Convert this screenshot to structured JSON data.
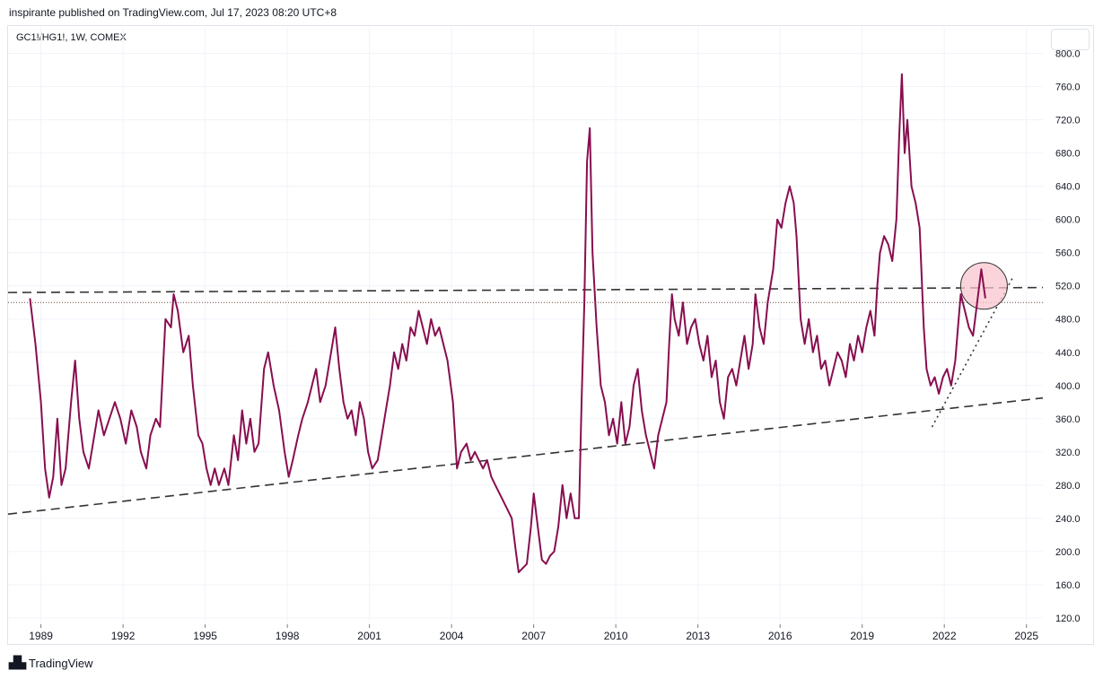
{
  "header": {
    "published": "inspirante published on TradingView.com, Jul 17, 2023 08:20 UTC+8"
  },
  "symbol_label": "GC1!/HG1!, 1W, COMEX",
  "footer": {
    "brand": "TradingView"
  },
  "colors": {
    "series": "#880e4f",
    "grid": "#f0f3fa",
    "trend": "#333333",
    "highlight_fill": "#f9c6cf",
    "highlight_stroke": "#333333"
  },
  "chart_data": {
    "type": "line",
    "x_range": [
      1987.8,
      2025.6
    ],
    "ylim": [
      108,
      832
    ],
    "x_ticks": [
      "1989",
      "1992",
      "1995",
      "1998",
      "2001",
      "2004",
      "2007",
      "2010",
      "2013",
      "2016",
      "2019",
      "2022",
      "2025"
    ],
    "y_ticks": [
      800,
      760,
      720,
      680,
      640,
      600,
      560,
      520,
      480,
      440,
      400,
      360,
      320,
      280,
      240,
      200,
      160,
      120
    ],
    "series": [
      {
        "points": [
          [
            1988.6,
            505
          ],
          [
            1988.8,
            450
          ],
          [
            1989.0,
            380
          ],
          [
            1989.15,
            300
          ],
          [
            1989.3,
            265
          ],
          [
            1989.45,
            290
          ],
          [
            1989.6,
            360
          ],
          [
            1989.75,
            280
          ],
          [
            1989.9,
            300
          ],
          [
            1990.1,
            380
          ],
          [
            1990.25,
            430
          ],
          [
            1990.4,
            360
          ],
          [
            1990.55,
            320
          ],
          [
            1990.75,
            300
          ],
          [
            1990.9,
            330
          ],
          [
            1991.1,
            370
          ],
          [
            1991.3,
            340
          ],
          [
            1991.5,
            360
          ],
          [
            1991.7,
            380
          ],
          [
            1991.9,
            360
          ],
          [
            1992.1,
            330
          ],
          [
            1992.3,
            370
          ],
          [
            1992.5,
            350
          ],
          [
            1992.65,
            320
          ],
          [
            1992.85,
            300
          ],
          [
            1993.0,
            340
          ],
          [
            1993.2,
            360
          ],
          [
            1993.35,
            350
          ],
          [
            1993.55,
            480
          ],
          [
            1993.75,
            470
          ],
          [
            1993.85,
            510
          ],
          [
            1994.0,
            490
          ],
          [
            1994.2,
            440
          ],
          [
            1994.4,
            460
          ],
          [
            1994.55,
            400
          ],
          [
            1994.75,
            340
          ],
          [
            1994.9,
            330
          ],
          [
            1995.05,
            300
          ],
          [
            1995.2,
            280
          ],
          [
            1995.35,
            300
          ],
          [
            1995.5,
            280
          ],
          [
            1995.7,
            300
          ],
          [
            1995.85,
            280
          ],
          [
            1996.05,
            340
          ],
          [
            1996.2,
            310
          ],
          [
            1996.35,
            370
          ],
          [
            1996.5,
            330
          ],
          [
            1996.65,
            360
          ],
          [
            1996.8,
            320
          ],
          [
            1996.95,
            330
          ],
          [
            1997.15,
            420
          ],
          [
            1997.3,
            440
          ],
          [
            1997.5,
            400
          ],
          [
            1997.7,
            370
          ],
          [
            1997.9,
            320
          ],
          [
            1998.05,
            290
          ],
          [
            1998.2,
            310
          ],
          [
            1998.4,
            340
          ],
          [
            1998.55,
            360
          ],
          [
            1998.75,
            380
          ],
          [
            1998.9,
            400
          ],
          [
            1999.05,
            420
          ],
          [
            1999.2,
            380
          ],
          [
            1999.4,
            400
          ],
          [
            1999.55,
            430
          ],
          [
            1999.75,
            470
          ],
          [
            1999.9,
            420
          ],
          [
            2000.05,
            380
          ],
          [
            2000.2,
            360
          ],
          [
            2000.35,
            370
          ],
          [
            2000.5,
            340
          ],
          [
            2000.65,
            380
          ],
          [
            2000.8,
            360
          ],
          [
            2000.95,
            320
          ],
          [
            2001.1,
            300
          ],
          [
            2001.3,
            310
          ],
          [
            2001.45,
            340
          ],
          [
            2001.6,
            370
          ],
          [
            2001.75,
            400
          ],
          [
            2001.9,
            440
          ],
          [
            2002.05,
            420
          ],
          [
            2002.2,
            450
          ],
          [
            2002.35,
            430
          ],
          [
            2002.5,
            470
          ],
          [
            2002.65,
            460
          ],
          [
            2002.8,
            490
          ],
          [
            2002.95,
            470
          ],
          [
            2003.1,
            450
          ],
          [
            2003.25,
            480
          ],
          [
            2003.4,
            460
          ],
          [
            2003.55,
            470
          ],
          [
            2003.7,
            450
          ],
          [
            2003.85,
            430
          ],
          [
            2004.05,
            380
          ],
          [
            2004.2,
            300
          ],
          [
            2004.35,
            320
          ],
          [
            2004.55,
            330
          ],
          [
            2004.7,
            310
          ],
          [
            2004.85,
            320
          ],
          [
            2005.0,
            310
          ],
          [
            2005.15,
            300
          ],
          [
            2005.3,
            310
          ],
          [
            2005.45,
            290
          ],
          [
            2005.6,
            280
          ],
          [
            2005.75,
            270
          ],
          [
            2005.9,
            260
          ],
          [
            2006.05,
            250
          ],
          [
            2006.2,
            240
          ],
          [
            2006.35,
            200
          ],
          [
            2006.45,
            175
          ],
          [
            2006.6,
            180
          ],
          [
            2006.75,
            185
          ],
          [
            2006.9,
            230
          ],
          [
            2007.0,
            270
          ],
          [
            2007.15,
            230
          ],
          [
            2007.3,
            190
          ],
          [
            2007.45,
            185
          ],
          [
            2007.6,
            195
          ],
          [
            2007.75,
            200
          ],
          [
            2007.9,
            230
          ],
          [
            2008.05,
            280
          ],
          [
            2008.2,
            240
          ],
          [
            2008.35,
            270
          ],
          [
            2008.5,
            240
          ],
          [
            2008.65,
            240
          ],
          [
            2008.75,
            380
          ],
          [
            2008.85,
            500
          ],
          [
            2008.95,
            670
          ],
          [
            2009.05,
            710
          ],
          [
            2009.15,
            560
          ],
          [
            2009.3,
            470
          ],
          [
            2009.45,
            400
          ],
          [
            2009.6,
            380
          ],
          [
            2009.75,
            340
          ],
          [
            2009.9,
            360
          ],
          [
            2010.05,
            330
          ],
          [
            2010.2,
            380
          ],
          [
            2010.35,
            330
          ],
          [
            2010.5,
            350
          ],
          [
            2010.65,
            400
          ],
          [
            2010.8,
            420
          ],
          [
            2010.95,
            370
          ],
          [
            2011.1,
            340
          ],
          [
            2011.25,
            320
          ],
          [
            2011.4,
            300
          ],
          [
            2011.55,
            340
          ],
          [
            2011.7,
            360
          ],
          [
            2011.85,
            380
          ],
          [
            2011.95,
            450
          ],
          [
            2012.05,
            510
          ],
          [
            2012.15,
            480
          ],
          [
            2012.3,
            460
          ],
          [
            2012.45,
            500
          ],
          [
            2012.6,
            450
          ],
          [
            2012.75,
            470
          ],
          [
            2012.9,
            480
          ],
          [
            2013.05,
            450
          ],
          [
            2013.2,
            430
          ],
          [
            2013.35,
            460
          ],
          [
            2013.5,
            410
          ],
          [
            2013.65,
            430
          ],
          [
            2013.8,
            380
          ],
          [
            2013.95,
            360
          ],
          [
            2014.1,
            410
          ],
          [
            2014.25,
            420
          ],
          [
            2014.4,
            400
          ],
          [
            2014.55,
            430
          ],
          [
            2014.7,
            460
          ],
          [
            2014.85,
            420
          ],
          [
            2015.0,
            450
          ],
          [
            2015.1,
            510
          ],
          [
            2015.25,
            470
          ],
          [
            2015.4,
            450
          ],
          [
            2015.55,
            500
          ],
          [
            2015.75,
            540
          ],
          [
            2015.9,
            600
          ],
          [
            2016.05,
            590
          ],
          [
            2016.2,
            620
          ],
          [
            2016.35,
            640
          ],
          [
            2016.5,
            620
          ],
          [
            2016.6,
            580
          ],
          [
            2016.75,
            480
          ],
          [
            2016.9,
            450
          ],
          [
            2017.05,
            480
          ],
          [
            2017.2,
            440
          ],
          [
            2017.35,
            460
          ],
          [
            2017.5,
            420
          ],
          [
            2017.65,
            430
          ],
          [
            2017.8,
            400
          ],
          [
            2017.95,
            420
          ],
          [
            2018.1,
            440
          ],
          [
            2018.25,
            430
          ],
          [
            2018.4,
            410
          ],
          [
            2018.55,
            450
          ],
          [
            2018.7,
            430
          ],
          [
            2018.85,
            460
          ],
          [
            2019.0,
            440
          ],
          [
            2019.15,
            470
          ],
          [
            2019.3,
            490
          ],
          [
            2019.45,
            460
          ],
          [
            2019.55,
            520
          ],
          [
            2019.65,
            560
          ],
          [
            2019.8,
            580
          ],
          [
            2019.95,
            570
          ],
          [
            2020.1,
            550
          ],
          [
            2020.25,
            600
          ],
          [
            2020.35,
            700
          ],
          [
            2020.45,
            775
          ],
          [
            2020.55,
            680
          ],
          [
            2020.65,
            720
          ],
          [
            2020.8,
            640
          ],
          [
            2020.95,
            620
          ],
          [
            2021.1,
            590
          ],
          [
            2021.25,
            470
          ],
          [
            2021.35,
            420
          ],
          [
            2021.5,
            400
          ],
          [
            2021.65,
            410
          ],
          [
            2021.8,
            390
          ],
          [
            2021.95,
            410
          ],
          [
            2022.1,
            420
          ],
          [
            2022.25,
            400
          ],
          [
            2022.4,
            430
          ],
          [
            2022.5,
            470
          ],
          [
            2022.6,
            510
          ],
          [
            2022.75,
            490
          ],
          [
            2022.9,
            470
          ],
          [
            2023.05,
            460
          ],
          [
            2023.2,
            500
          ],
          [
            2023.35,
            540
          ],
          [
            2023.5,
            505
          ]
        ]
      }
    ],
    "annotations": {
      "resistance_line": [
        [
          1987.8,
          512
        ],
        [
          2025.6,
          518
        ]
      ],
      "support_line": [
        [
          1987.8,
          245
        ],
        [
          2025.6,
          385
        ]
      ],
      "dotted_uptrend": [
        [
          2021.55,
          350
        ],
        [
          2024.5,
          530
        ]
      ],
      "level_line": 500,
      "highlight_circle": {
        "x": 2023.45,
        "y": 520
      }
    }
  }
}
